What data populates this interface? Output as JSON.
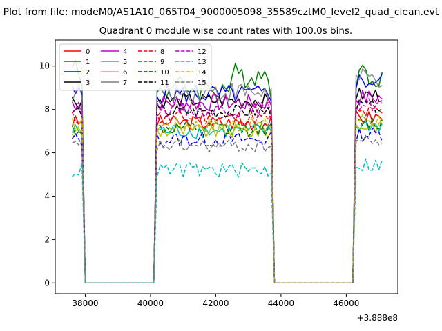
{
  "figure": {
    "suptitle": "Plot from file: modeM0/AS1A10_065T04_9000005098_35589cztM0_level2_quad_clean.evt",
    "title": "Quadrant 0 module wise count rates with 100.0s bins.",
    "x_offset_label": "+3.888e8"
  },
  "chart_data": {
    "type": "line",
    "title": "Quadrant 0 module wise count rates with 100.0s bins.",
    "xlabel": "",
    "ylabel": "",
    "x_offset": 388800000,
    "xlim": [
      37080,
      47580
    ],
    "ylim": [
      -0.5,
      11.2
    ],
    "xticks": [
      38000,
      40000,
      42000,
      44000,
      46000
    ],
    "yticks": [
      0,
      2,
      4,
      6,
      8,
      10
    ],
    "legend_position": "top-left",
    "legend_columns": 4,
    "grid": false,
    "segments": [
      {
        "from": 37600,
        "to": 37900
      },
      {
        "from": 40200,
        "to": 43700
      },
      {
        "from": 46300,
        "to": 47100
      }
    ],
    "series": [
      {
        "name": "0",
        "color": "#ff0000",
        "dash": "solid",
        "base": 7.4,
        "amp": 0.35
      },
      {
        "name": "1",
        "color": "#008000",
        "dash": "solid",
        "base": 9.0,
        "amp": 0.6
      },
      {
        "name": "2",
        "color": "#0000ff",
        "dash": "solid",
        "base": 8.7,
        "amp": 0.45
      },
      {
        "name": "3",
        "color": "#000000",
        "dash": "solid",
        "base": 8.4,
        "amp": 0.35
      },
      {
        "name": "4",
        "color": "#bf00bf",
        "dash": "solid",
        "base": 8.3,
        "amp": 0.4
      },
      {
        "name": "5",
        "color": "#00bfbf",
        "dash": "solid",
        "base": 7.0,
        "amp": 0.35
      },
      {
        "name": "6",
        "color": "#bfbf00",
        "dash": "solid",
        "base": 7.0,
        "amp": 0.35
      },
      {
        "name": "7",
        "color": "#7f7f7f",
        "dash": "solid",
        "base": 8.8,
        "amp": 0.5
      },
      {
        "name": "8",
        "color": "#ff0000",
        "dash": "dashed",
        "base": 7.6,
        "amp": 0.35
      },
      {
        "name": "9",
        "color": "#008000",
        "dash": "dashed",
        "base": 7.1,
        "amp": 0.35
      },
      {
        "name": "10",
        "color": "#0000ff",
        "dash": "dashed",
        "base": 6.6,
        "amp": 0.35
      },
      {
        "name": "11",
        "color": "#000000",
        "dash": "dashed",
        "base": 7.9,
        "amp": 0.3
      },
      {
        "name": "12",
        "color": "#bf00bf",
        "dash": "dashed",
        "base": 8.0,
        "amp": 0.35
      },
      {
        "name": "13",
        "color": "#00bfbf",
        "dash": "dashed",
        "base": 5.2,
        "amp": 0.35
      },
      {
        "name": "14",
        "color": "#bfbf00",
        "dash": "dashed",
        "base": 7.3,
        "amp": 0.35
      },
      {
        "name": "15",
        "color": "#7f7f7f",
        "dash": "dashed",
        "base": 6.3,
        "amp": 0.3
      }
    ]
  }
}
